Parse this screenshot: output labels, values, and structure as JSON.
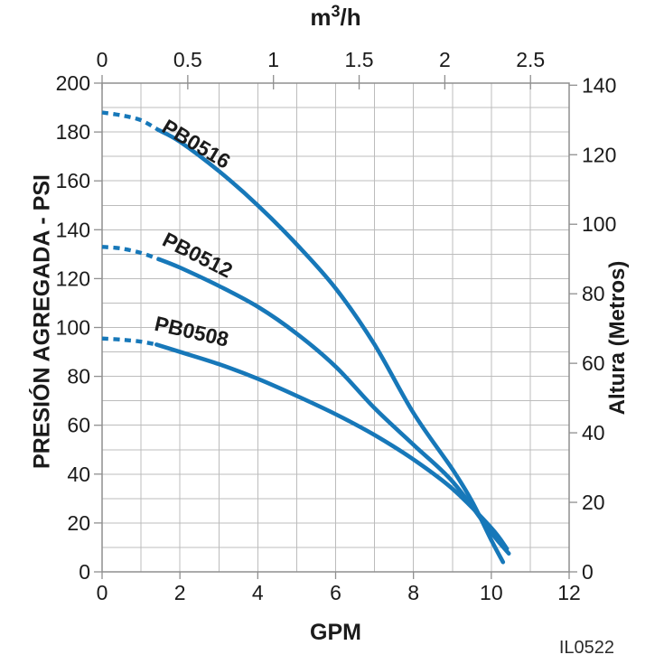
{
  "labels": {
    "top_title_base": "m",
    "top_title_sup": "3",
    "top_title_rest": "/h",
    "bottom_title": "GPM",
    "left_title": "PRESIÓN AGREGADA - PSI",
    "right_title": "Altura (Metros)",
    "figure_code": "IL0522"
  },
  "style": {
    "curve_color": "#1778B9",
    "grid_color": "#bcbcbc",
    "border_color": "#8f8f8f",
    "text_color": "#1b1b1b"
  },
  "chart_data": {
    "type": "line",
    "title": "",
    "x_axis_bottom": {
      "label": "GPM",
      "min": 0,
      "max": 12,
      "tick_step": 2,
      "grid_step": 1,
      "ticks": [
        0,
        2,
        4,
        6,
        8,
        10,
        12
      ]
    },
    "x_axis_top": {
      "label": "m3/h",
      "ticks": [
        "0",
        "0.5",
        "1",
        "1.5",
        "2",
        "2.5"
      ],
      "gpm_per_m3h": 4.4029
    },
    "y_axis_left": {
      "label": "PRESIÓN AGREGADA - PSI",
      "min": 0,
      "max": 200,
      "tick_step": 20,
      "grid_step": 10,
      "ticks": [
        0,
        20,
        40,
        60,
        80,
        100,
        120,
        140,
        160,
        180,
        200
      ]
    },
    "y_axis_right": {
      "label": "Altura (Metros)",
      "min": 0,
      "max": 140,
      "tick_step": 20,
      "psi_per_meter": 1.42247,
      "ticks": [
        0,
        20,
        40,
        60,
        80,
        100,
        120,
        140
      ]
    },
    "grid": true,
    "legend": "labels-on-curves",
    "series": [
      {
        "name": "PB0516",
        "dashed_gpm_psi": [
          [
            0,
            188
          ],
          [
            0.5,
            186.8
          ],
          [
            1,
            184.8
          ],
          [
            1.45,
            180.8
          ]
        ],
        "solid_gpm_psi": [
          [
            1.45,
            180.8
          ],
          [
            2,
            176
          ],
          [
            3,
            164
          ],
          [
            4,
            150
          ],
          [
            5,
            134
          ],
          [
            6,
            116
          ],
          [
            7,
            93
          ],
          [
            8,
            65
          ],
          [
            9,
            42
          ],
          [
            9.5,
            29
          ],
          [
            10,
            13
          ],
          [
            10.3,
            4
          ]
        ],
        "label": {
          "gpm": 1.5,
          "psi": 180.5,
          "angle_deg": 31
        }
      },
      {
        "name": "PB0512",
        "dashed_gpm_psi": [
          [
            0,
            133
          ],
          [
            0.5,
            132.3
          ],
          [
            1,
            130.5
          ],
          [
            1.45,
            128
          ]
        ],
        "solid_gpm_psi": [
          [
            1.45,
            128
          ],
          [
            2,
            124.5
          ],
          [
            3,
            117
          ],
          [
            4,
            108.5
          ],
          [
            5,
            97.5
          ],
          [
            6,
            84
          ],
          [
            7,
            67
          ],
          [
            8,
            52
          ],
          [
            9,
            37
          ],
          [
            10,
            16
          ],
          [
            10.45,
            7.5
          ]
        ],
        "label": {
          "gpm": 1.51,
          "psi": 134,
          "angle_deg": 27
        }
      },
      {
        "name": "PB0508",
        "dashed_gpm_psi": [
          [
            0,
            95.5
          ],
          [
            0.5,
            95
          ],
          [
            1,
            94.2
          ],
          [
            1.4,
            93
          ]
        ],
        "solid_gpm_psi": [
          [
            1.4,
            93
          ],
          [
            2,
            90
          ],
          [
            3,
            85
          ],
          [
            4,
            79
          ],
          [
            5,
            72
          ],
          [
            6,
            64.5
          ],
          [
            7,
            56
          ],
          [
            8,
            46
          ],
          [
            9,
            34
          ],
          [
            10,
            18
          ],
          [
            10.4,
            9.5
          ]
        ],
        "label": {
          "gpm": 1.32,
          "psi": 99,
          "angle_deg": 13
        }
      }
    ]
  }
}
